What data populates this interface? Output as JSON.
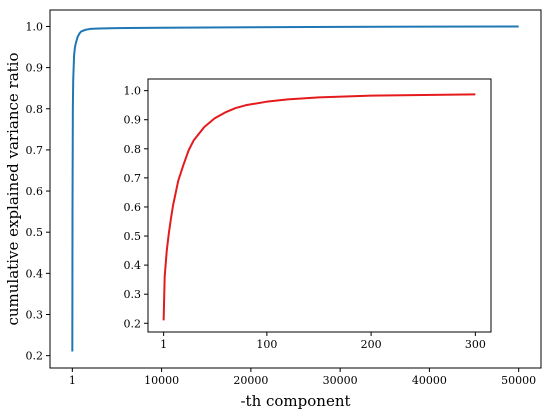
{
  "chart_data": [
    {
      "id": "main",
      "type": "line",
      "title": "",
      "xlabel": "-th component",
      "ylabel": "cumulative explained variance ratio",
      "xlim": [
        -2500,
        52500
      ],
      "ylim": [
        0.17,
        1.04
      ],
      "xticks": [
        1,
        10000,
        20000,
        30000,
        40000,
        50000
      ],
      "xtick_labels": [
        "1",
        "10000",
        "20000",
        "30000",
        "40000",
        "50000"
      ],
      "yticks": [
        0.2,
        0.3,
        0.4,
        0.5,
        0.6,
        0.7,
        0.8,
        0.9,
        1.0
      ],
      "ytick_labels": [
        "0.2",
        "0.3",
        "0.4",
        "0.5",
        "0.6",
        "0.7",
        "0.8",
        "0.9",
        "1.0"
      ],
      "grid": false,
      "series": [
        {
          "color": "#1f77b4",
          "x": [
            1,
            20,
            60,
            100,
            200,
            300,
            400,
            600,
            800,
            1000,
            1500,
            2000,
            3000,
            5000,
            10000,
            20000,
            30000,
            40000,
            50000
          ],
          "y": [
            0.21,
            0.55,
            0.8,
            0.87,
            0.93,
            0.95,
            0.96,
            0.975,
            0.983,
            0.988,
            0.992,
            0.994,
            0.995,
            0.996,
            0.997,
            0.998,
            0.999,
            0.9995,
            1.0
          ]
        }
      ]
    },
    {
      "id": "inset",
      "type": "line",
      "title": "",
      "xlabel": "",
      "ylabel": "",
      "xlim": [
        -14,
        315
      ],
      "ylim": [
        0.17,
        1.04
      ],
      "xticks": [
        1,
        100,
        200,
        300
      ],
      "xtick_labels": [
        "1",
        "100",
        "200",
        "300"
      ],
      "yticks": [
        0.2,
        0.3,
        0.4,
        0.5,
        0.6,
        0.7,
        0.8,
        0.9,
        1.0
      ],
      "ytick_labels": [
        "0.2",
        "0.3",
        "0.4",
        "0.5",
        "0.6",
        "0.7",
        "0.8",
        "0.9",
        "1.0"
      ],
      "grid": false,
      "series": [
        {
          "color": "#e41a1c",
          "x": [
            1,
            2,
            4,
            6,
            8,
            10,
            15,
            20,
            25,
            30,
            40,
            50,
            60,
            70,
            80,
            100,
            120,
            150,
            200,
            250,
            300
          ],
          "y": [
            0.21,
            0.36,
            0.45,
            0.51,
            0.56,
            0.605,
            0.69,
            0.745,
            0.795,
            0.83,
            0.875,
            0.905,
            0.925,
            0.94,
            0.95,
            0.962,
            0.97,
            0.977,
            0.983,
            0.985,
            0.987
          ]
        }
      ]
    }
  ]
}
